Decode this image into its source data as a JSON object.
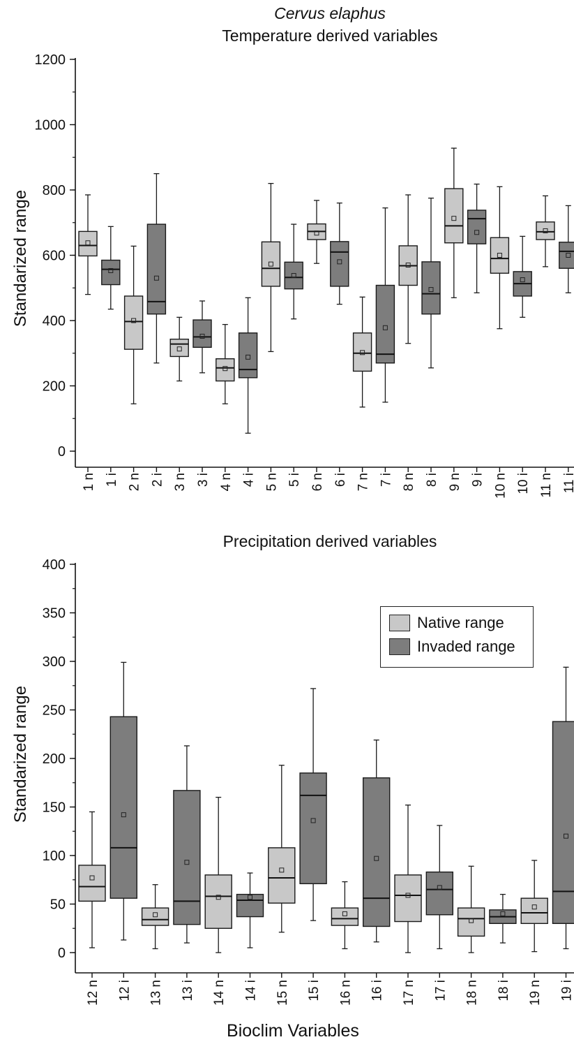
{
  "titles": {
    "species": "Cervus elaphus",
    "top": "Temperature derived variables",
    "bottom": "Precipitation derived variables"
  },
  "y_label": "Standarized range",
  "x_label": "Bioclim Variables",
  "legend": {
    "native": "Native range",
    "invaded": "Invaded range"
  },
  "colors": {
    "native": "#c8c8c8",
    "invaded": "#7d7d7d",
    "stroke": "#1a1a1a"
  },
  "chart_data": [
    {
      "type": "box",
      "title": "Temperature derived variables",
      "ylabel": "Standarized range",
      "ylim": [
        0,
        1200
      ],
      "yticks": [
        0,
        200,
        400,
        600,
        800,
        1000,
        1200
      ],
      "categories": [
        "1 n",
        "1 i",
        "2 n",
        "2 i",
        "3 n",
        "3 i",
        "4 n",
        "4 i",
        "5 n",
        "5 i",
        "6 n",
        "6 i",
        "7 n",
        "7 i",
        "8 n",
        "8 i",
        "9 n",
        "9 i",
        "10 n",
        "10 i",
        "11 n",
        "11 i"
      ],
      "groups": [
        "native",
        "invaded",
        "native",
        "invaded",
        "native",
        "invaded",
        "native",
        "invaded",
        "native",
        "invaded",
        "native",
        "invaded",
        "native",
        "invaded",
        "native",
        "invaded",
        "native",
        "invaded",
        "native",
        "invaded",
        "native",
        "invaded"
      ],
      "min": [
        480,
        435,
        145,
        270,
        215,
        240,
        145,
        55,
        305,
        405,
        575,
        450,
        135,
        150,
        330,
        255,
        470,
        485,
        375,
        410,
        565,
        485
      ],
      "q1": [
        598,
        510,
        312,
        420,
        290,
        318,
        215,
        225,
        505,
        497,
        648,
        505,
        245,
        270,
        508,
        420,
        638,
        635,
        545,
        475,
        648,
        560
      ],
      "median": [
        630,
        557,
        397,
        458,
        328,
        350,
        255,
        250,
        560,
        532,
        673,
        610,
        300,
        297,
        568,
        482,
        690,
        712,
        590,
        513,
        672,
        612
      ],
      "q3": [
        673,
        585,
        475,
        695,
        343,
        402,
        283,
        362,
        641,
        579,
        696,
        642,
        362,
        508,
        629,
        580,
        804,
        738,
        654,
        550,
        702,
        640
      ],
      "max": [
        785,
        688,
        628,
        850,
        410,
        460,
        388,
        470,
        820,
        695,
        768,
        760,
        472,
        745,
        785,
        775,
        928,
        818,
        810,
        658,
        782,
        752
      ],
      "mean": [
        638,
        553,
        400,
        530,
        313,
        352,
        253,
        288,
        573,
        538,
        668,
        580,
        302,
        378,
        570,
        495,
        713,
        670,
        600,
        525,
        675,
        600
      ]
    },
    {
      "type": "box",
      "title": "Precipitation derived variables",
      "xlabel": "Bioclim Variables",
      "ylabel": "Standarized range",
      "ylim": [
        0,
        400
      ],
      "yticks": [
        0,
        50,
        100,
        150,
        200,
        250,
        300,
        350,
        400
      ],
      "categories": [
        "12 n",
        "12 i",
        "13 n",
        "13 i",
        "14 n",
        "14 i",
        "15 n",
        "15 i",
        "16 n",
        "16 i",
        "17 n",
        "17 i",
        "18 n",
        "18 i",
        "19 n",
        "19 i"
      ],
      "groups": [
        "native",
        "invaded",
        "native",
        "invaded",
        "native",
        "invaded",
        "native",
        "invaded",
        "native",
        "invaded",
        "native",
        "invaded",
        "native",
        "invaded",
        "native",
        "invaded"
      ],
      "min": [
        5,
        13,
        4,
        10,
        0,
        5,
        21,
        33,
        4,
        11,
        0,
        4,
        0,
        10,
        1,
        4
      ],
      "q1": [
        53,
        56,
        28,
        29,
        25,
        37,
        51,
        71,
        28,
        27,
        32,
        39,
        17,
        30,
        30,
        30
      ],
      "median": [
        68,
        108,
        34,
        53,
        58,
        54,
        77,
        162,
        35,
        56,
        59,
        65,
        35,
        37,
        41,
        63
      ],
      "q3": [
        90,
        243,
        46,
        167,
        80,
        60,
        108,
        185,
        46,
        180,
        80,
        83,
        46,
        44,
        56,
        238
      ],
      "max": [
        145,
        299,
        70,
        213,
        160,
        82,
        193,
        272,
        73,
        219,
        152,
        131,
        89,
        60,
        95,
        294
      ],
      "mean": [
        77,
        142,
        39,
        93,
        57,
        57,
        85,
        136,
        40,
        97,
        59,
        67,
        33,
        40,
        47,
        120
      ]
    }
  ]
}
